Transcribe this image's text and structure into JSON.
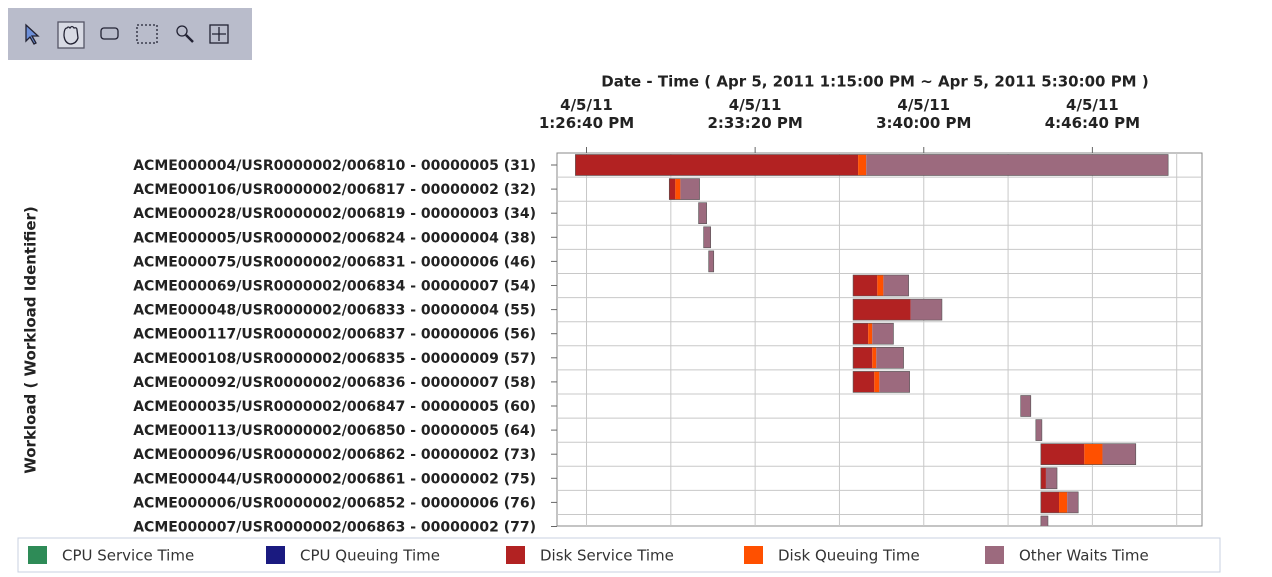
{
  "chart_data": {
    "type": "gantt",
    "x_label": "Date - Time ( Apr 5, 2011 1:15:00 PM ~ Apr 5, 2011 5:30:00 PM )",
    "y_label": "Workload ( Workload Identifier)",
    "categories": [
      "ACME000004/USR0000002/006810 - 00000005 (31)",
      "ACME000106/USR0000002/006817 - 00000002 (32)",
      "ACME000028/USR0000002/006819 - 00000003 (34)",
      "ACME000005/USR0000002/006824 - 00000004 (38)",
      "ACME000075/USR0000002/006831 - 00000006 (46)",
      "ACME000069/USR0000002/006834 - 00000007 (54)",
      "ACME000048/USR0000002/006833 - 00000004 (55)",
      "ACME000117/USR0000002/006837 - 00000006 (56)",
      "ACME000108/USR0000002/006835 - 00000009 (57)",
      "ACME000092/USR0000002/006836 - 00000007 (58)",
      "ACME000035/USR0000002/006847 - 00000005 (60)",
      "ACME000113/USR0000002/006850 - 00000005 (64)",
      "ACME000096/USR0000002/006862 - 00000002 (73)",
      "ACME000044/USR0000002/006861 - 00000002 (75)",
      "ACME000006/USR0000002/006852 - 00000006 (76)",
      "ACME000007/USR0000002/006863 - 00000002 (77)"
    ],
    "start": [
      48136,
      50363,
      51058,
      51178,
      51298,
      54723,
      54723,
      54723,
      54723,
      54723,
      58699,
      59058,
      59178,
      59178,
      59178,
      59178
    ],
    "series": [
      {
        "name": "CPU Service Time",
        "color": "#2e8b57",
        "values": [
          0,
          0,
          0,
          0,
          0,
          0,
          0,
          0,
          0,
          0,
          0,
          0,
          0,
          0,
          0,
          0
        ]
      },
      {
        "name": "CPU Queuing Time",
        "color": "#1a1a80",
        "values": [
          0,
          0,
          0,
          0,
          0,
          0,
          0,
          0,
          0,
          0,
          0,
          0,
          0,
          0,
          0,
          0
        ]
      },
      {
        "name": "Disk Service Time",
        "color": "#b22222",
        "values": [
          6707,
          144,
          0,
          0,
          0,
          575,
          1365,
          359,
          455,
          503,
          0,
          0,
          1030,
          120,
          431,
          0
        ]
      },
      {
        "name": "Disk Queuing Time",
        "color": "#ff5000",
        "values": [
          192,
          120,
          0,
          0,
          0,
          144,
          0,
          96,
          96,
          120,
          0,
          0,
          431,
          0,
          192,
          0
        ]
      },
      {
        "name": "Other Waits Time",
        "color": "#9c6a7e",
        "values": [
          7162,
          455,
          192,
          168,
          120,
          599,
          743,
          503,
          647,
          719,
          240,
          144,
          790,
          263,
          263,
          168
        ]
      }
    ],
    "xlim": [
      47700,
      63000
    ],
    "xticks": [
      {
        "value": 48400,
        "label": "4/5/11\n1:26:40 PM"
      },
      {
        "value": 52400,
        "label": "4/5/11\n2:33:20 PM"
      },
      {
        "value": 56400,
        "label": "4/5/11\n3:40:00 PM"
      },
      {
        "value": 60400,
        "label": "4/5/11\n4:46:40 PM"
      }
    ],
    "xgrid": [
      48400,
      50400,
      52400,
      54400,
      56400,
      58400,
      60400,
      62400
    ],
    "grid": true
  }
}
